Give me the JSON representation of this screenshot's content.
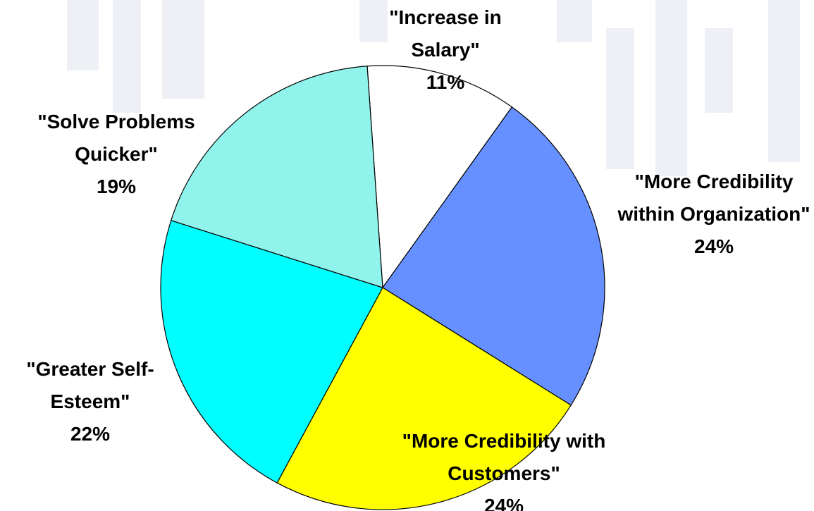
{
  "chart_data": {
    "type": "pie",
    "categories": [
      "\"Increase in Salary\"",
      "\"More Credibility within Organization\"",
      "\"More Credibility with Customers\"",
      "\"Greater Self-Esteem\"",
      "\"Solve Problems Quicker\""
    ],
    "values": [
      11,
      24,
      24,
      22,
      19
    ],
    "value_labels": [
      "11%",
      "24%",
      "24%",
      "22%",
      "19%"
    ],
    "colors": [
      "#ffffff",
      "#6690ff",
      "#ffff00",
      "#00ffff",
      "#90f4ec"
    ]
  }
}
